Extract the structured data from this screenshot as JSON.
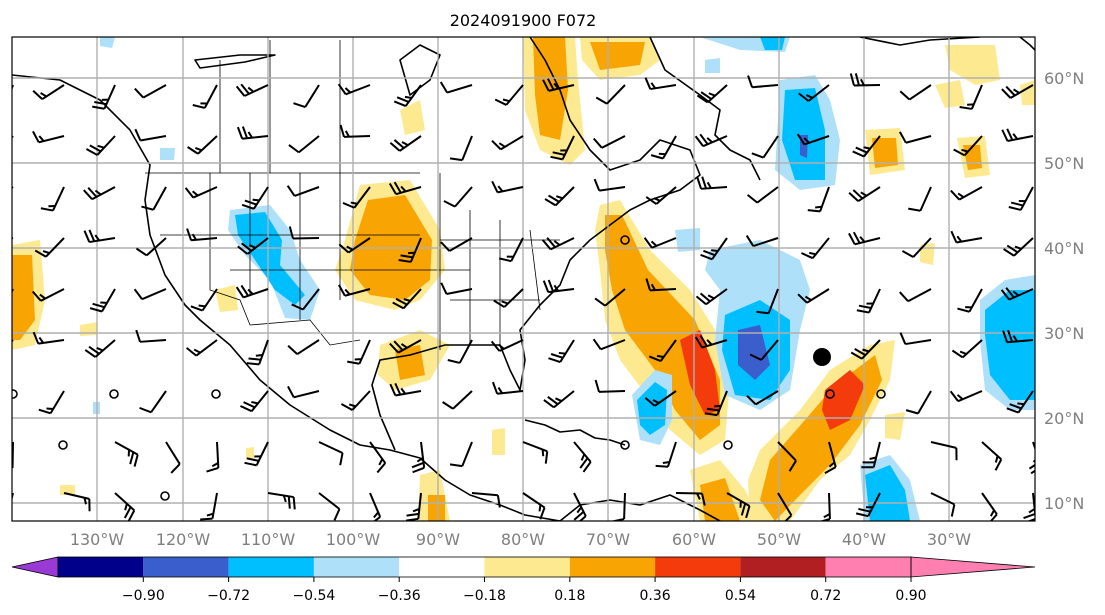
{
  "title": "2024091900 F072",
  "lat_labels": [
    "60°N",
    "50°N",
    "40°N",
    "30°N",
    "20°N",
    "10°N"
  ],
  "lon_labels": [
    "130°W",
    "120°W",
    "110°W",
    "100°W",
    "90°W",
    "80°W",
    "70°W",
    "60°W",
    "50°W",
    "40°W",
    "30°W"
  ],
  "colorbar": {
    "ticks": [
      "−0.90",
      "−0.72",
      "−0.54",
      "−0.36",
      "−0.18",
      "0.18",
      "0.36",
      "0.54",
      "0.72",
      "0.90"
    ],
    "colors": [
      "#9a3ad6",
      "#00008b",
      "#3a5fcd",
      "#00bfff",
      "#aee0fa",
      "#ffffff",
      "#fde98f",
      "#f8a402",
      "#f33b0c",
      "#b21f22",
      "#ff80b0"
    ]
  },
  "tropical_marker": {
    "lat": 27.5,
    "lon": -46.5,
    "color": "#000000"
  }
}
